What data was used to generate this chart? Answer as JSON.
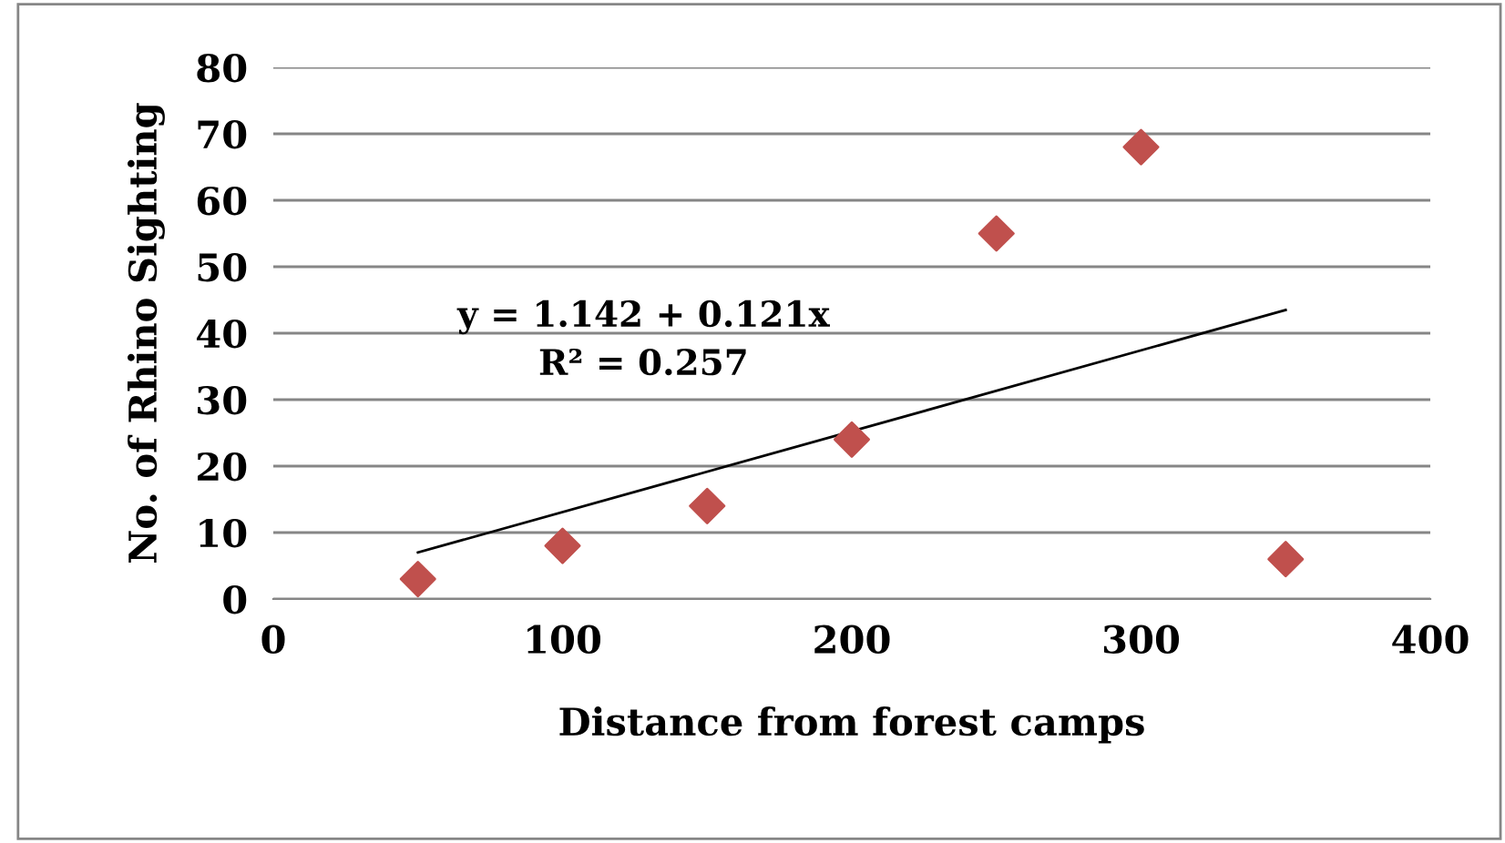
{
  "chart_data": {
    "type": "scatter",
    "xlabel": "Distance from forest camps",
    "ylabel": "No. of Rhino Sighting",
    "series": [
      {
        "color": "#c0504d",
        "marker": "diamond",
        "x": [
          50,
          100,
          150,
          200,
          250,
          300,
          350
        ],
        "values": [
          3,
          8,
          14,
          24,
          55,
          68,
          6
        ]
      },
      {
        "type": "line",
        "color": "#000000",
        "marker": "none",
        "x": [
          50,
          350
        ],
        "values": [
          7,
          43.5
        ]
      }
    ],
    "annotations": [
      "y = 1.142 + 0.121x",
      "R² = 0.257"
    ],
    "xlim": [
      0,
      400
    ],
    "xticks": [
      0,
      100,
      200,
      300,
      400
    ],
    "ylim": [
      0,
      80
    ],
    "yticks": [
      0,
      10,
      20,
      30,
      40,
      50,
      60,
      70,
      80
    ],
    "grid": "y",
    "legend": false
  }
}
